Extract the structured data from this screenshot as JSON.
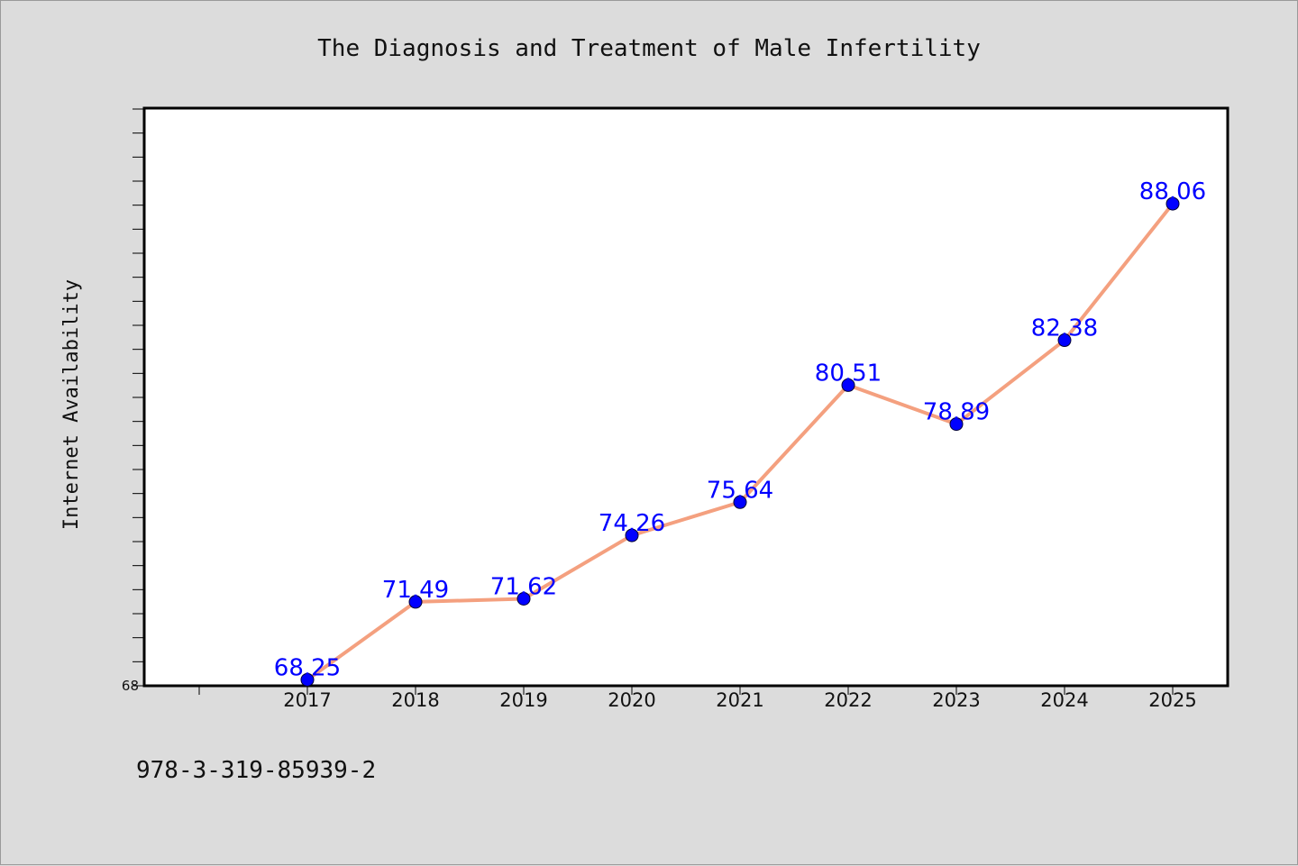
{
  "chart_data": {
    "type": "line",
    "title": "The Diagnosis and Treatment of Male Infertility",
    "xlabel": "",
    "ylabel": "Internet Availability",
    "categories": [
      "2017",
      "2018",
      "2019",
      "2020",
      "2021",
      "2022",
      "2023",
      "2024",
      "2025"
    ],
    "series": [
      {
        "values": [
          68.25,
          71.49,
          71.62,
          74.26,
          75.64,
          80.51,
          78.89,
          82.38,
          88.06
        ],
        "value_labels": [
          "68.25",
          "71.49",
          "71.62",
          "74.26",
          "75.64",
          "80.51",
          "78.89",
          "82.38",
          "88.06"
        ]
      }
    ],
    "ylim": [
      68,
      92
    ],
    "yticks_labeled": [
      "68"
    ],
    "grid": false,
    "legend": "none",
    "colors": {
      "line": "#f4a07f",
      "marker": "#0000ff",
      "label": "#0000ff",
      "background": "#dcdcdc",
      "plot_background": "#ffffff"
    }
  },
  "footnote": "978-3-319-85939-2"
}
